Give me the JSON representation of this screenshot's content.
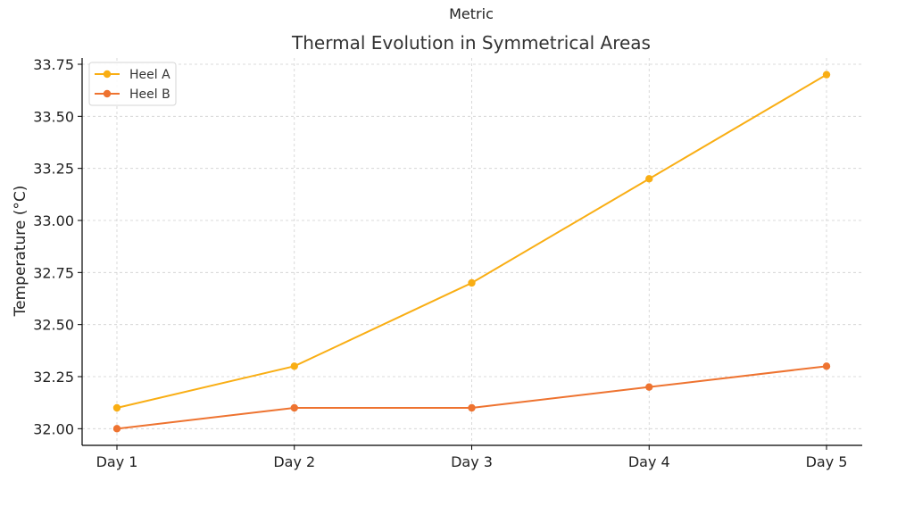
{
  "chart_data": {
    "type": "line",
    "suptitle": "Metric",
    "title": "Thermal Evolution in Symmetrical Areas",
    "xlabel": "",
    "ylabel": "Temperature (°C)",
    "categories": [
      "Day 1",
      "Day 2",
      "Day 3",
      "Day 4",
      "Day 5"
    ],
    "ylim": [
      31.92,
      33.78
    ],
    "yticks": [
      32.0,
      32.25,
      32.5,
      32.75,
      33.0,
      33.25,
      33.5,
      33.75
    ],
    "ytick_labels": [
      "32.00",
      "32.25",
      "32.50",
      "32.75",
      "33.00",
      "33.25",
      "33.50",
      "33.75"
    ],
    "grid": true,
    "legend_position": "top-left",
    "series": [
      {
        "name": "Heel A",
        "color": "#F9AE14",
        "values": [
          32.1,
          32.3,
          32.7,
          33.2,
          33.7
        ]
      },
      {
        "name": "Heel B",
        "color": "#EE7330",
        "values": [
          32.0,
          32.1,
          32.1,
          32.2,
          32.3
        ]
      }
    ]
  }
}
